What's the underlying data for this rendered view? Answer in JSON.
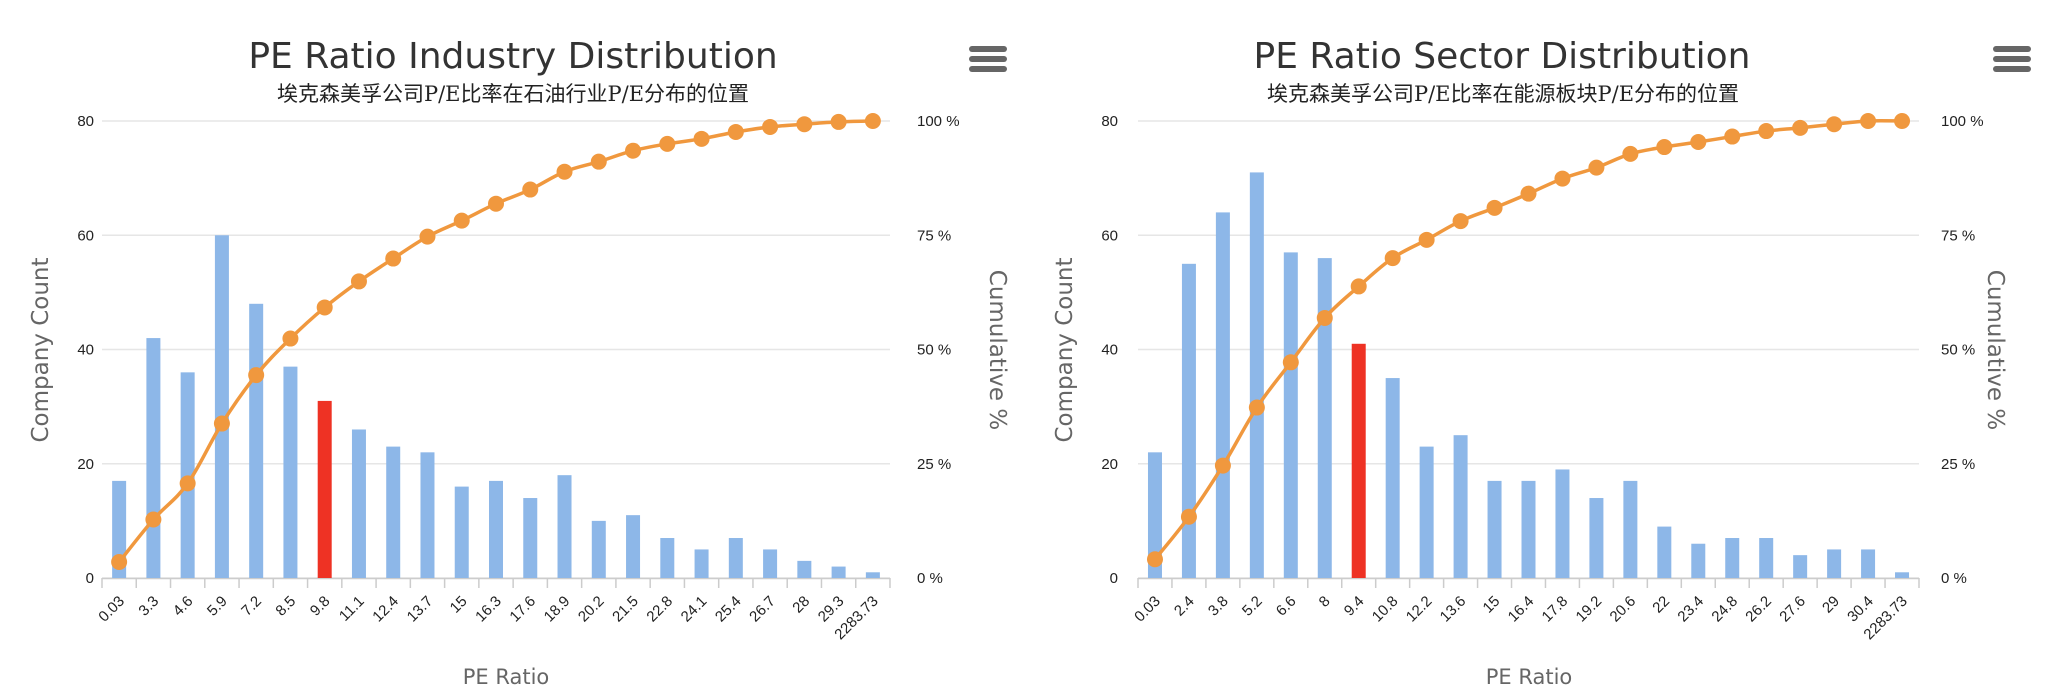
{
  "colors": {
    "bar": "#8db7e8",
    "highlight_bar": "#ee3224",
    "line": "#f0983e",
    "grid": "#e6e6e6",
    "axis_title": "#666666",
    "menu_icon": "#666666"
  },
  "chart_data": [
    {
      "type": "bar+line",
      "title": "PE Ratio Industry Distribution",
      "subtitle": "埃克森美孚公司P/E比率在石油行业P/E分布的位置",
      "xlabel": "PE Ratio",
      "ylabel": "Company Count",
      "y2label": "Cumulative %",
      "ylim": [
        0,
        80
      ],
      "y_ticks": [
        "0",
        "20",
        "40",
        "60",
        "80"
      ],
      "y2lim": [
        0,
        100
      ],
      "y2_ticks": [
        "0 %",
        "25 %",
        "50 %",
        "75 %",
        "100 %"
      ],
      "grid": true,
      "highlight_category": "9.8",
      "categories": [
        "0.03",
        "3.3",
        "4.6",
        "5.9",
        "7.2",
        "8.5",
        "9.8",
        "11.1",
        "12.4",
        "13.7",
        "15",
        "16.3",
        "17.6",
        "18.9",
        "20.2",
        "21.5",
        "22.8",
        "24.1",
        "25.4",
        "26.7",
        "28",
        "29.3",
        "2283.73"
      ],
      "series": [
        {
          "type": "bar",
          "values": [
            17,
            42,
            36,
            60,
            48,
            37,
            31,
            26,
            23,
            22,
            16,
            17,
            14,
            18,
            10,
            11,
            7,
            5,
            7,
            5,
            3,
            2,
            1
          ]
        },
        {
          "type": "line",
          "values": [
            3.5,
            12.8,
            20.7,
            33.8,
            44.4,
            52.4,
            59.2,
            64.9,
            69.9,
            74.7,
            78.2,
            81.9,
            85.0,
            88.9,
            91.1,
            93.5,
            95.0,
            96.1,
            97.6,
            98.7,
            99.3,
            99.8,
            100
          ]
        }
      ]
    },
    {
      "type": "bar+line",
      "title": "PE Ratio Sector Distribution",
      "subtitle": "埃克森美孚公司P/E比率在能源板块P/E分布的位置",
      "xlabel": "PE Ratio",
      "ylabel": "Company Count",
      "y2label": "Cumulative %",
      "ylim": [
        0,
        80
      ],
      "y_ticks": [
        "0",
        "20",
        "40",
        "60",
        "80"
      ],
      "y2lim": [
        0,
        100
      ],
      "y2_ticks": [
        "0 %",
        "25 %",
        "50 %",
        "75 %",
        "100 %"
      ],
      "grid": true,
      "highlight_category": "9.4",
      "categories": [
        "0.03",
        "2.4",
        "3.8",
        "5.2",
        "6.6",
        "8",
        "9.4",
        "10.8",
        "12.2",
        "13.6",
        "15",
        "16.4",
        "17.8",
        "19.2",
        "20.6",
        "22",
        "23.4",
        "24.8",
        "26.2",
        "27.6",
        "29",
        "30.4",
        "2283.73"
      ],
      "series": [
        {
          "type": "bar",
          "values": [
            22,
            55,
            64,
            71,
            57,
            56,
            41,
            35,
            23,
            25,
            17,
            17,
            19,
            14,
            17,
            9,
            6,
            7,
            7,
            4,
            5,
            5,
            1
          ]
        },
        {
          "type": "line",
          "values": [
            4.1,
            13.4,
            24.6,
            37.3,
            47.2,
            56.9,
            63.8,
            70.0,
            74.0,
            78.1,
            81.0,
            84.1,
            87.4,
            89.8,
            92.8,
            94.3,
            95.4,
            96.6,
            97.8,
            98.5,
            99.3,
            100,
            100
          ]
        }
      ]
    }
  ]
}
